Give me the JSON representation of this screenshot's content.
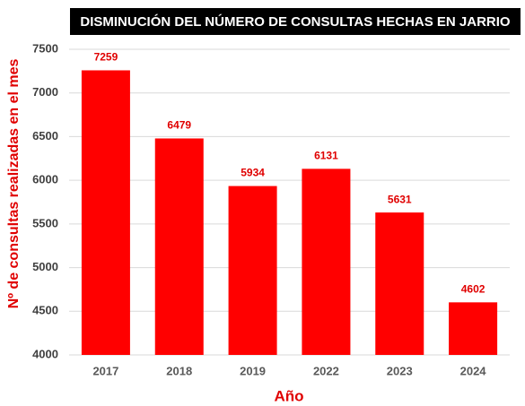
{
  "chart_data": {
    "type": "bar",
    "title": "DISMINUCIÓN DEL NÚMERO DE CONSULTAS HECHAS EN JARRIO",
    "x_label": "Año",
    "y_label": "Nº de consultas realizadas en el mes",
    "categories": [
      "2017",
      "2018",
      "2019",
      "2022",
      "2023",
      "2024"
    ],
    "values": [
      7259,
      6479,
      5934,
      6131,
      5631,
      4602
    ],
    "color": "#ff0000",
    "ylim": [
      4000,
      7500
    ],
    "yticks": [
      4000,
      4500,
      5000,
      5500,
      6000,
      6500,
      7000,
      7500
    ],
    "grid": true
  }
}
